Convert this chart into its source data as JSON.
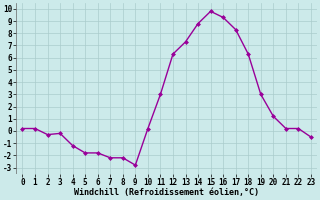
{
  "hours": [
    0,
    1,
    2,
    3,
    4,
    5,
    6,
    7,
    8,
    9,
    10,
    11,
    12,
    13,
    14,
    15,
    16,
    17,
    18,
    19,
    20,
    21,
    22,
    23
  ],
  "values": [
    0.2,
    0.2,
    -0.3,
    -0.2,
    -1.2,
    -1.8,
    -1.8,
    -2.2,
    -2.2,
    -2.8,
    0.2,
    3.0,
    6.3,
    7.3,
    8.8,
    9.8,
    9.3,
    8.3,
    6.3,
    3.0,
    1.2,
    0.2,
    0.2,
    -0.5
  ],
  "line_color": "#990099",
  "marker": "D",
  "markersize": 2.0,
  "linewidth": 1.0,
  "bg_color": "#cceaea",
  "grid_color": "#aacccc",
  "xlabel": "Windchill (Refroidissement éolien,°C)",
  "xlabel_fontsize": 6.0,
  "tick_fontsize": 5.5,
  "ylim": [
    -3.5,
    10.5
  ],
  "xlim": [
    -0.5,
    23.5
  ],
  "yticks": [
    -3,
    -2,
    -1,
    0,
    1,
    2,
    3,
    4,
    5,
    6,
    7,
    8,
    9,
    10
  ],
  "xlabel_bold": true,
  "font_family": "monospace"
}
